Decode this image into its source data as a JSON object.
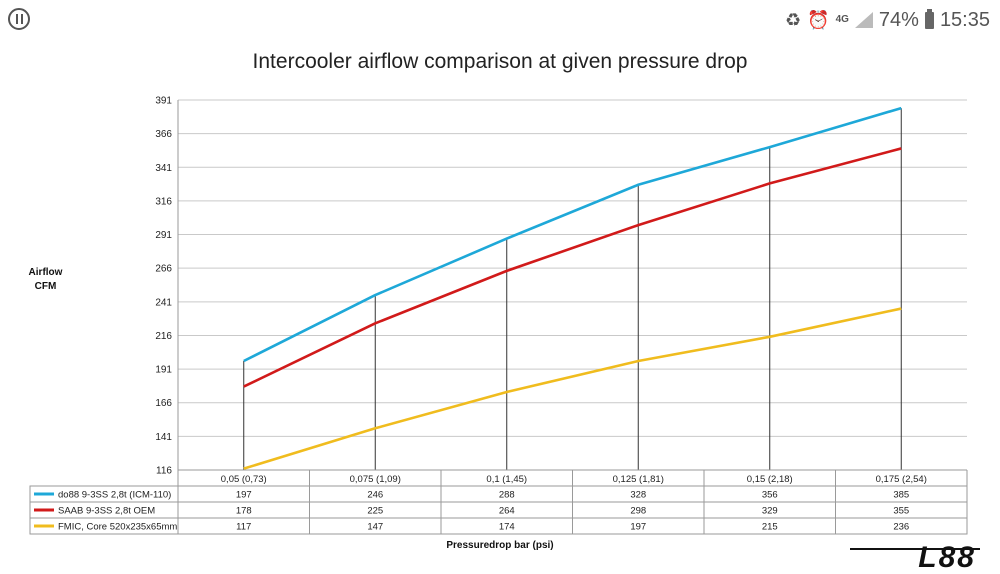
{
  "status_bar": {
    "network": "4G",
    "battery": "74%",
    "time": "15:35",
    "icons": [
      "app-logo-icon",
      "battery-saver-icon",
      "alarm-icon",
      "signal-icon",
      "battery-icon"
    ]
  },
  "chart_data": {
    "type": "line",
    "title": "Intercooler airflow comparison at given pressure drop",
    "ylabel": "Airflow\nCFM",
    "xlabel": "Pressuredrop bar (psi)",
    "categories": [
      "0,05 (0,73)",
      "0,075 (1,09)",
      "0,1 (1,45)",
      "0,125 (1,81)",
      "0,15 (2,18)",
      "0,175 (2,54)"
    ],
    "yticks": [
      "116",
      "141",
      "166",
      "191",
      "216",
      "241",
      "266",
      "291",
      "316",
      "341",
      "366",
      "391"
    ],
    "ylim": [
      116,
      391
    ],
    "grid": true,
    "legend_position": "data-table-below",
    "series": [
      {
        "name": "do88 9-3SS 2,8t (ICM-110)",
        "color": "#1ea8d8",
        "values": [
          197,
          246,
          288,
          328,
          356,
          385
        ]
      },
      {
        "name": "SAAB 9-3SS 2,8t OEM",
        "color": "#d11a1a",
        "values": [
          178,
          225,
          264,
          298,
          329,
          355
        ]
      },
      {
        "name": "FMIC, Core 520x235x65mm",
        "color": "#f0bc1e",
        "values": [
          117,
          147,
          174,
          197,
          215,
          236
        ]
      }
    ]
  },
  "watermark": {
    "text": "L88"
  }
}
